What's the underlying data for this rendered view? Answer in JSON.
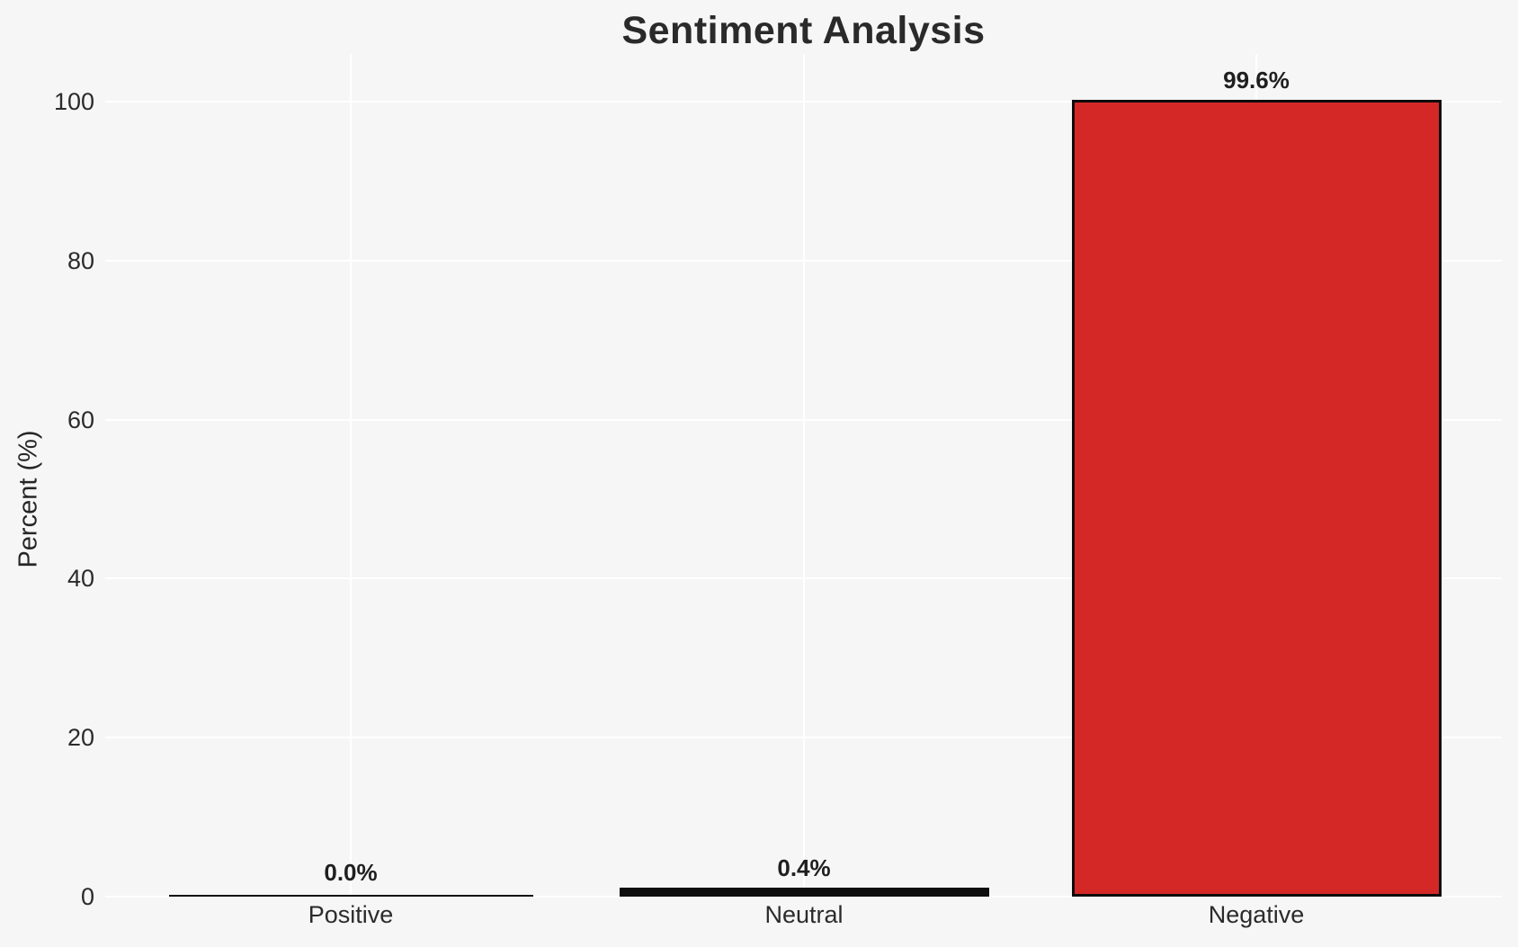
{
  "chart_data": {
    "type": "bar",
    "title": "Sentiment Analysis",
    "xlabel": "",
    "ylabel": "Percent (%)",
    "categories": [
      "Positive",
      "Neutral",
      "Negative"
    ],
    "values": [
      0.0,
      0.4,
      99.6
    ],
    "value_labels": [
      "0.0%",
      "0.4%",
      "99.6%"
    ],
    "bar_colors": [
      null,
      null,
      "#d42827"
    ],
    "yticks": [
      0,
      20,
      40,
      60,
      80,
      100
    ],
    "ylim": [
      0,
      106
    ],
    "grid": true,
    "legend": false
  },
  "colors": {
    "figure_background": "#f6f6f7",
    "gridline": "#ffffff",
    "text": "#262626",
    "bar_edge": "#0d0d0d",
    "negative_bar_fill": "#d42827"
  }
}
